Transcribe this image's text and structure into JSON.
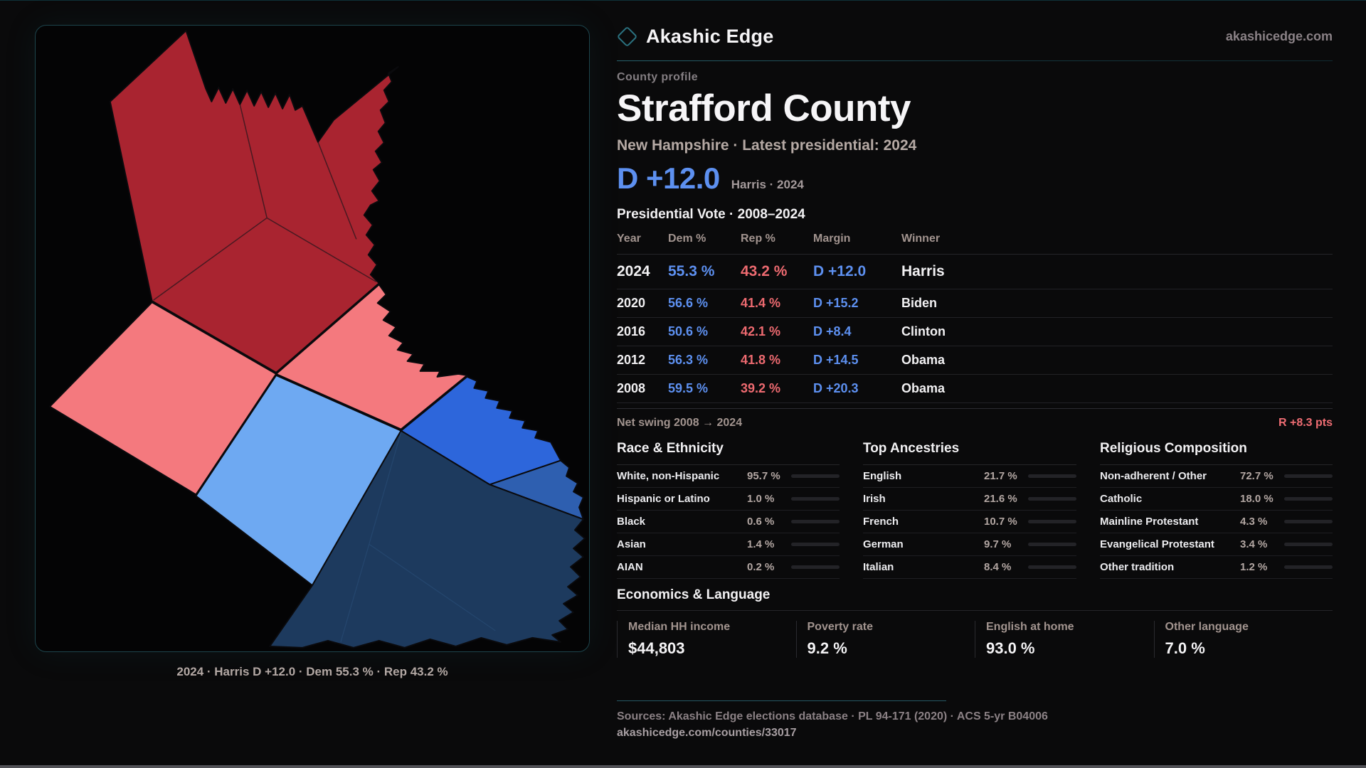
{
  "brand": {
    "name": "Akashic Edge",
    "domain": "akashicedge.com"
  },
  "header": {
    "eyebrow": "County profile",
    "title": "Strafford County",
    "subtitle": "New Hampshire · Latest presidential: 2024"
  },
  "headline_margin": {
    "value": "D +12.0",
    "note": "Harris · 2024"
  },
  "vote_table": {
    "title": "Presidential Vote · 2008–2024",
    "columns": [
      "Year",
      "Dem %",
      "Rep %",
      "Margin",
      "Winner"
    ],
    "rows": [
      {
        "year": "2024",
        "dem": "55.3 %",
        "rep": "43.2 %",
        "margin": "D +12.0",
        "winner": "Harris"
      },
      {
        "year": "2020",
        "dem": "56.6 %",
        "rep": "41.4 %",
        "margin": "D +15.2",
        "winner": "Biden"
      },
      {
        "year": "2016",
        "dem": "50.6 %",
        "rep": "42.1 %",
        "margin": "D +8.4",
        "winner": "Clinton"
      },
      {
        "year": "2012",
        "dem": "56.3 %",
        "rep": "41.8 %",
        "margin": "D +14.5",
        "winner": "Obama"
      },
      {
        "year": "2008",
        "dem": "59.5 %",
        "rep": "39.2 %",
        "margin": "D +20.3",
        "winner": "Obama"
      }
    ],
    "net_swing_label": "Net swing 2008 → 2024",
    "net_swing_value": "R +8.3 pts"
  },
  "sections": [
    {
      "title": "Race & Ethnicity",
      "rows": [
        {
          "label": "White, non-Hispanic",
          "value": "95.7 %",
          "pct": 95.7,
          "color": "#a9bdd4"
        },
        {
          "label": "Hispanic or Latino",
          "value": "1.0 %",
          "pct": 1.0,
          "color": "#a9bdd4"
        },
        {
          "label": "Black",
          "value": "0.6 %",
          "pct": 0.6,
          "color": "#a9bdd4"
        },
        {
          "label": "Asian",
          "value": "1.4 %",
          "pct": 1.4,
          "color": "#2fd3a6"
        },
        {
          "label": "AIAN",
          "value": "0.2 %",
          "pct": 0.2,
          "color": "#a9bdd4"
        }
      ]
    },
    {
      "title": "Top Ancestries",
      "rows": [
        {
          "label": "English",
          "value": "21.7 %",
          "pct": 21.7,
          "color": "#a9bdd4"
        },
        {
          "label": "Irish",
          "value": "21.6 %",
          "pct": 21.6,
          "color": "#a9bdd4"
        },
        {
          "label": "French",
          "value": "10.7 %",
          "pct": 10.7,
          "color": "#a9bdd4"
        },
        {
          "label": "German",
          "value": "9.7 %",
          "pct": 9.7,
          "color": "#a9bdd4"
        },
        {
          "label": "Italian",
          "value": "8.4 %",
          "pct": 8.4,
          "color": "#a9bdd4"
        }
      ]
    },
    {
      "title": "Religious Composition",
      "rows": [
        {
          "label": "Non-adherent / Other",
          "value": "72.7 %",
          "pct": 72.7,
          "color": "#8b99ab"
        },
        {
          "label": "Catholic",
          "value": "18.0 %",
          "pct": 18.0,
          "color": "#e2a72e"
        },
        {
          "label": "Mainline Protestant",
          "value": "4.3 %",
          "pct": 4.3,
          "color": "#3f7de8"
        },
        {
          "label": "Evangelical Protestant",
          "value": "3.4 %",
          "pct": 3.4,
          "color": "#e25a5e"
        },
        {
          "label": "Other tradition",
          "value": "1.2 %",
          "pct": 1.2,
          "color": "#9aa1a9"
        }
      ]
    }
  ],
  "economics": {
    "title": "Economics & Language",
    "stats": [
      {
        "label": "Median HH income",
        "value": "$44,803"
      },
      {
        "label": "Poverty rate",
        "value": "9.2 %"
      },
      {
        "label": "English at home",
        "value": "93.0 %"
      },
      {
        "label": "Other language",
        "value": "7.0 %"
      }
    ]
  },
  "footer": {
    "sources": "Sources: Akashic Edge elections database · PL 94-171 (2020) · ACS 5-yr B04006",
    "url": "akashicedge.com/counties/33017"
  },
  "map": {
    "caption": "2024 · Harris D +12.0 · Dem 55.3 % · Rep 43.2 %",
    "colors": {
      "strong_rep": "#a92430",
      "lean_rep": "#f4797e",
      "lean_dem": "#6ea9f2",
      "dem_bright": "#2d66db",
      "dem_mid": "#2e5fb0",
      "strong_dem": "#1d3a5e"
    },
    "accent_dem_text": "#5d90f0",
    "accent_rep_text": "#ed6a70"
  }
}
